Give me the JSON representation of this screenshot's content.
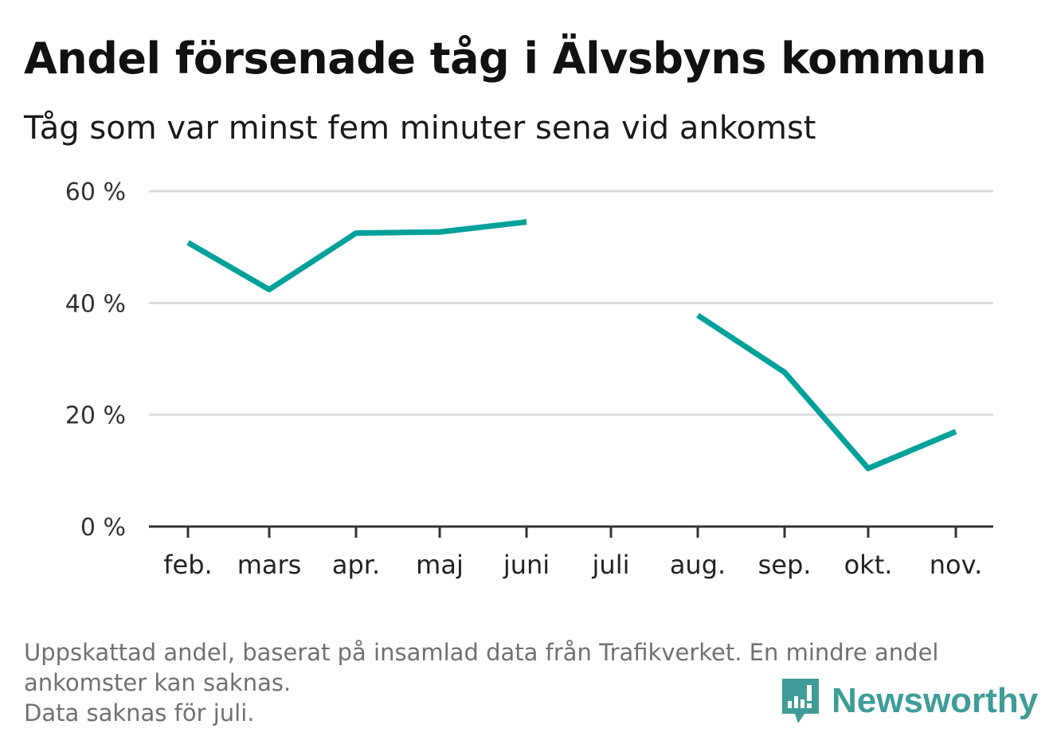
{
  "header": {
    "title": "Andel försenade tåg i Älvsbyns kommun",
    "subtitle": "Tåg som var minst fem minuter sena vid ankomst"
  },
  "footer": {
    "note_lines": [
      "Uppskattad andel, baserat på insamlad data från Trafikverket. En mindre andel",
      "ankomster kan saknas.",
      "Data saknas för juli."
    ],
    "brand": "Newsworthy",
    "brand_icon": "newsworthy-logo-icon"
  },
  "colors": {
    "line": "#00a19a",
    "grid": "#dddddd",
    "axis": "#333333",
    "brand": "#3f9c97"
  },
  "chart_data": {
    "type": "line",
    "title": "Andel försenade tåg i Älvsbyns kommun",
    "subtitle": "Tåg som var minst fem minuter sena vid ankomst",
    "categories": [
      "feb.",
      "mars",
      "apr.",
      "maj",
      "juni",
      "juli",
      "aug.",
      "sep.",
      "okt.",
      "nov."
    ],
    "series": [
      {
        "values": [
          50.8,
          42.4,
          52.5,
          52.7,
          54.5,
          null,
          37.8,
          27.6,
          10.4,
          17.0
        ]
      }
    ],
    "ylim": [
      0,
      60
    ],
    "yticks": [
      0,
      20,
      40,
      60
    ],
    "ytick_labels": [
      "0 %",
      "20 %",
      "40 %",
      "60 %"
    ],
    "grid": true,
    "legend": "none"
  }
}
